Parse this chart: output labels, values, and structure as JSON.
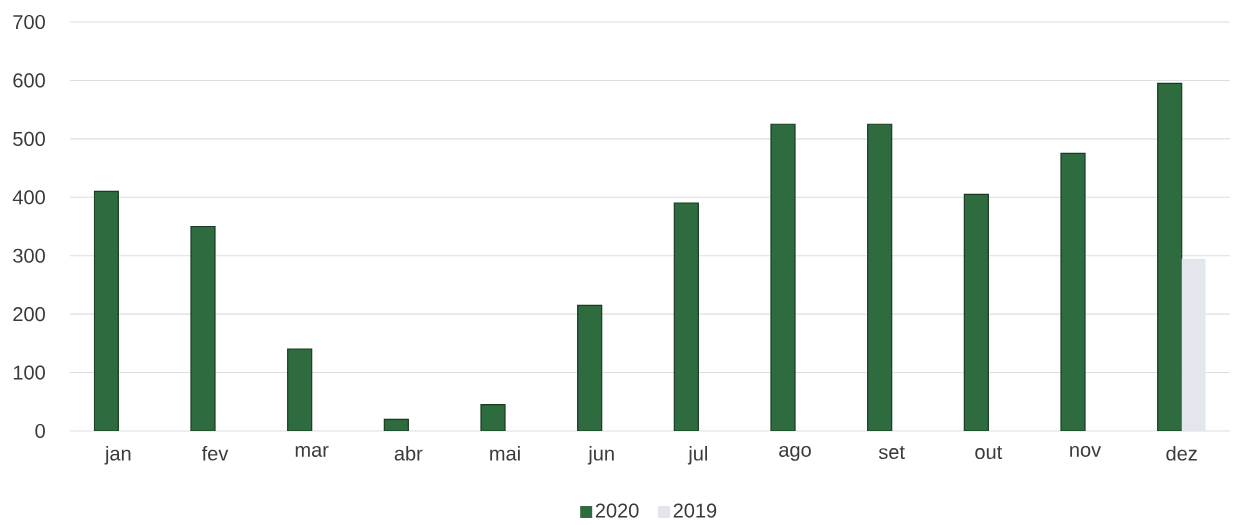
{
  "chart_data": {
    "type": "bar",
    "categories": [
      "jan",
      "fev",
      "mar",
      "abr",
      "mai",
      "jun",
      "jul",
      "ago",
      "set",
      "out",
      "nov",
      "dez"
    ],
    "series": [
      {
        "name": "2020",
        "color": "#2e6b3e",
        "values": [
          410,
          350,
          140,
          20,
          45,
          215,
          390,
          525,
          525,
          405,
          475,
          595
        ]
      },
      {
        "name": "2019",
        "color": "#e4e6ed",
        "values": [
          null,
          null,
          null,
          null,
          null,
          null,
          null,
          null,
          null,
          null,
          null,
          295
        ]
      }
    ],
    "ylim": [
      0,
      700
    ],
    "yticks": [
      0,
      100,
      200,
      300,
      400,
      500,
      600,
      700
    ],
    "grid": "y",
    "legend": "bottom"
  }
}
